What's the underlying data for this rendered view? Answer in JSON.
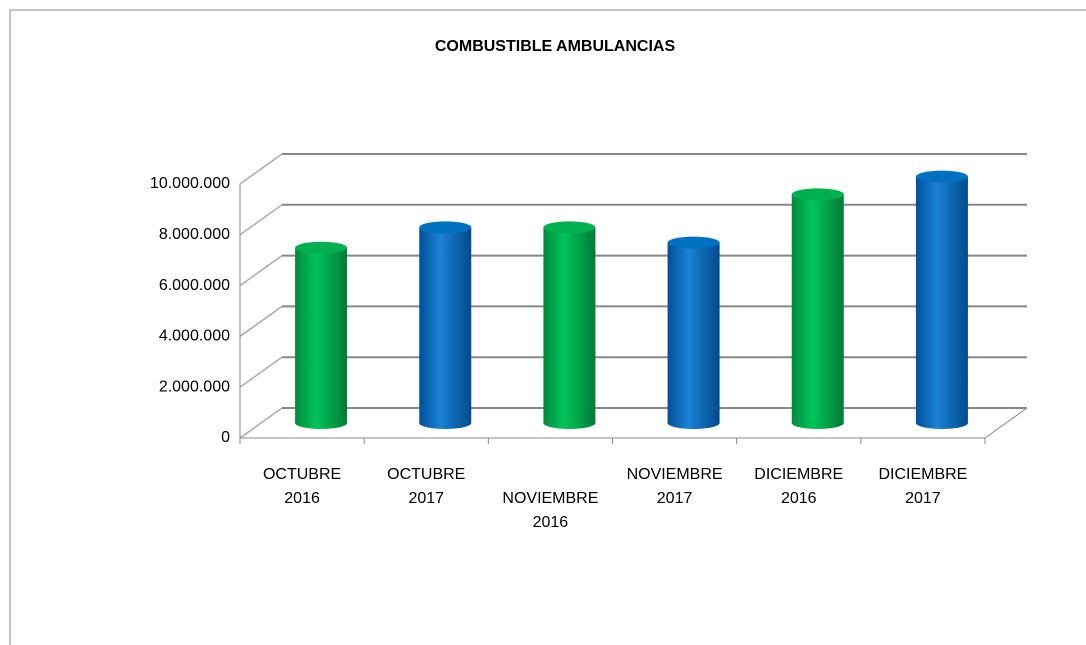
{
  "chart_data": {
    "type": "bar",
    "title": "COMBUSTIBLE AMBULANCIAS",
    "categories": [
      "OCTUBRE 2016",
      "OCTUBRE 2017",
      "NOVIEMBRE 2016",
      "NOVIEMBRE 2017",
      "DICIEMBRE 2016",
      "DICIEMBRE 2017"
    ],
    "values": [
      6900000,
      7700000,
      7700000,
      7100000,
      9000000,
      9700000
    ],
    "colors": [
      "#00b050",
      "#0070c0",
      "#00b050",
      "#0070c0",
      "#00b050",
      "#0070c0"
    ],
    "ylim": [
      0,
      10000000
    ],
    "yticks": [
      0,
      {
        "value": 2000000,
        "label": "2.000.000"
      },
      {
        "value": 4000000,
        "label": "4.000.000"
      },
      {
        "value": 6000000,
        "label": "6.000.000"
      },
      {
        "value": 8000000,
        "label": "8.000.000"
      },
      {
        "value": 10000000,
        "label": "10.000.000"
      }
    ],
    "grid": true
  }
}
